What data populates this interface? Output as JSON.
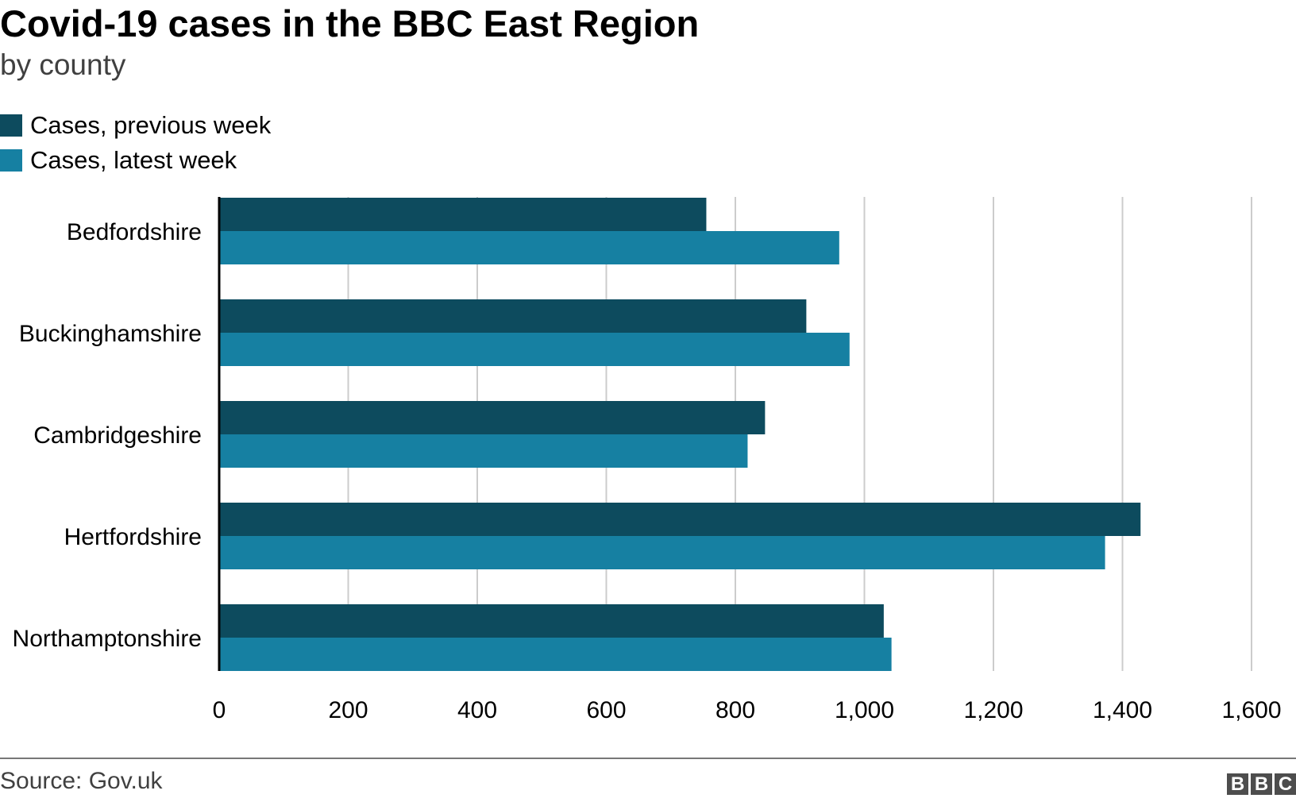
{
  "header": {
    "title": "Covid-19 cases in the BBC East Region",
    "subtitle": "by county"
  },
  "legend": {
    "items": [
      {
        "label": "Cases, previous week",
        "color": "#0d4b5e"
      },
      {
        "label": "Cases, latest week",
        "color": "#1680a2"
      }
    ]
  },
  "footer": {
    "source": "Source: Gov.uk",
    "logo_letters": [
      "B",
      "B",
      "C"
    ]
  },
  "chart_data": {
    "type": "bar",
    "orientation": "horizontal",
    "categories": [
      "Bedfordshire",
      "Buckinghamshire",
      "Cambridgeshire",
      "Hertfordshire",
      "Northamptonshire"
    ],
    "series": [
      {
        "name": "Cases, previous week",
        "color": "#0d4b5e",
        "values": [
          755,
          910,
          846,
          1428,
          1030
        ]
      },
      {
        "name": "Cases, latest week",
        "color": "#1680a2",
        "values": [
          961,
          977,
          819,
          1373,
          1042
        ]
      }
    ],
    "xlim": [
      0,
      1600
    ],
    "xticks": [
      0,
      200,
      400,
      600,
      800,
      1000,
      1200,
      1400,
      1600
    ],
    "xtick_labels": [
      "0",
      "200",
      "400",
      "600",
      "800",
      "1,000",
      "1,200",
      "1,400",
      "1,600"
    ],
    "grid": "vertical",
    "legend_position": "top-left",
    "title": "Covid-19 cases in the BBC East Region",
    "subtitle": "by county",
    "xlabel": "",
    "ylabel": ""
  }
}
